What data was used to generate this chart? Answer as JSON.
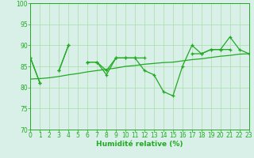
{
  "x": [
    0,
    1,
    2,
    3,
    4,
    5,
    6,
    7,
    8,
    9,
    10,
    11,
    12,
    13,
    14,
    15,
    16,
    17,
    18,
    19,
    20,
    21,
    22,
    23
  ],
  "main_y": [
    87,
    81,
    null,
    84,
    90,
    null,
    86,
    86,
    83,
    87,
    87,
    87,
    84,
    83,
    79,
    78,
    85,
    90,
    88,
    89,
    89,
    92,
    89,
    88
  ],
  "line2_y": [
    87,
    81,
    null,
    84,
    90,
    null,
    86,
    86,
    84,
    87,
    87,
    87,
    87,
    null,
    null,
    null,
    null,
    88,
    88,
    89,
    89,
    89,
    null,
    88
  ],
  "trend_y": [
    82.0,
    82.1,
    82.3,
    82.6,
    83.0,
    83.3,
    83.7,
    84.0,
    84.3,
    84.6,
    85.0,
    85.2,
    85.5,
    85.7,
    85.9,
    86.0,
    86.3,
    86.6,
    86.8,
    87.1,
    87.4,
    87.6,
    87.9,
    88.0
  ],
  "line_color": "#22aa22",
  "bg_color": "#d8f0e8",
  "grid_color": "#aaddaa",
  "xlabel": "Humidité relative (%)",
  "ylim": [
    70,
    100
  ],
  "yticks": [
    70,
    75,
    80,
    85,
    90,
    95,
    100
  ],
  "xlim": [
    0,
    23
  ],
  "xticks": [
    0,
    1,
    2,
    3,
    4,
    5,
    6,
    7,
    8,
    9,
    10,
    11,
    12,
    13,
    14,
    15,
    16,
    17,
    18,
    19,
    20,
    21,
    22,
    23
  ],
  "tick_fontsize": 5.5,
  "xlabel_fontsize": 6.5
}
